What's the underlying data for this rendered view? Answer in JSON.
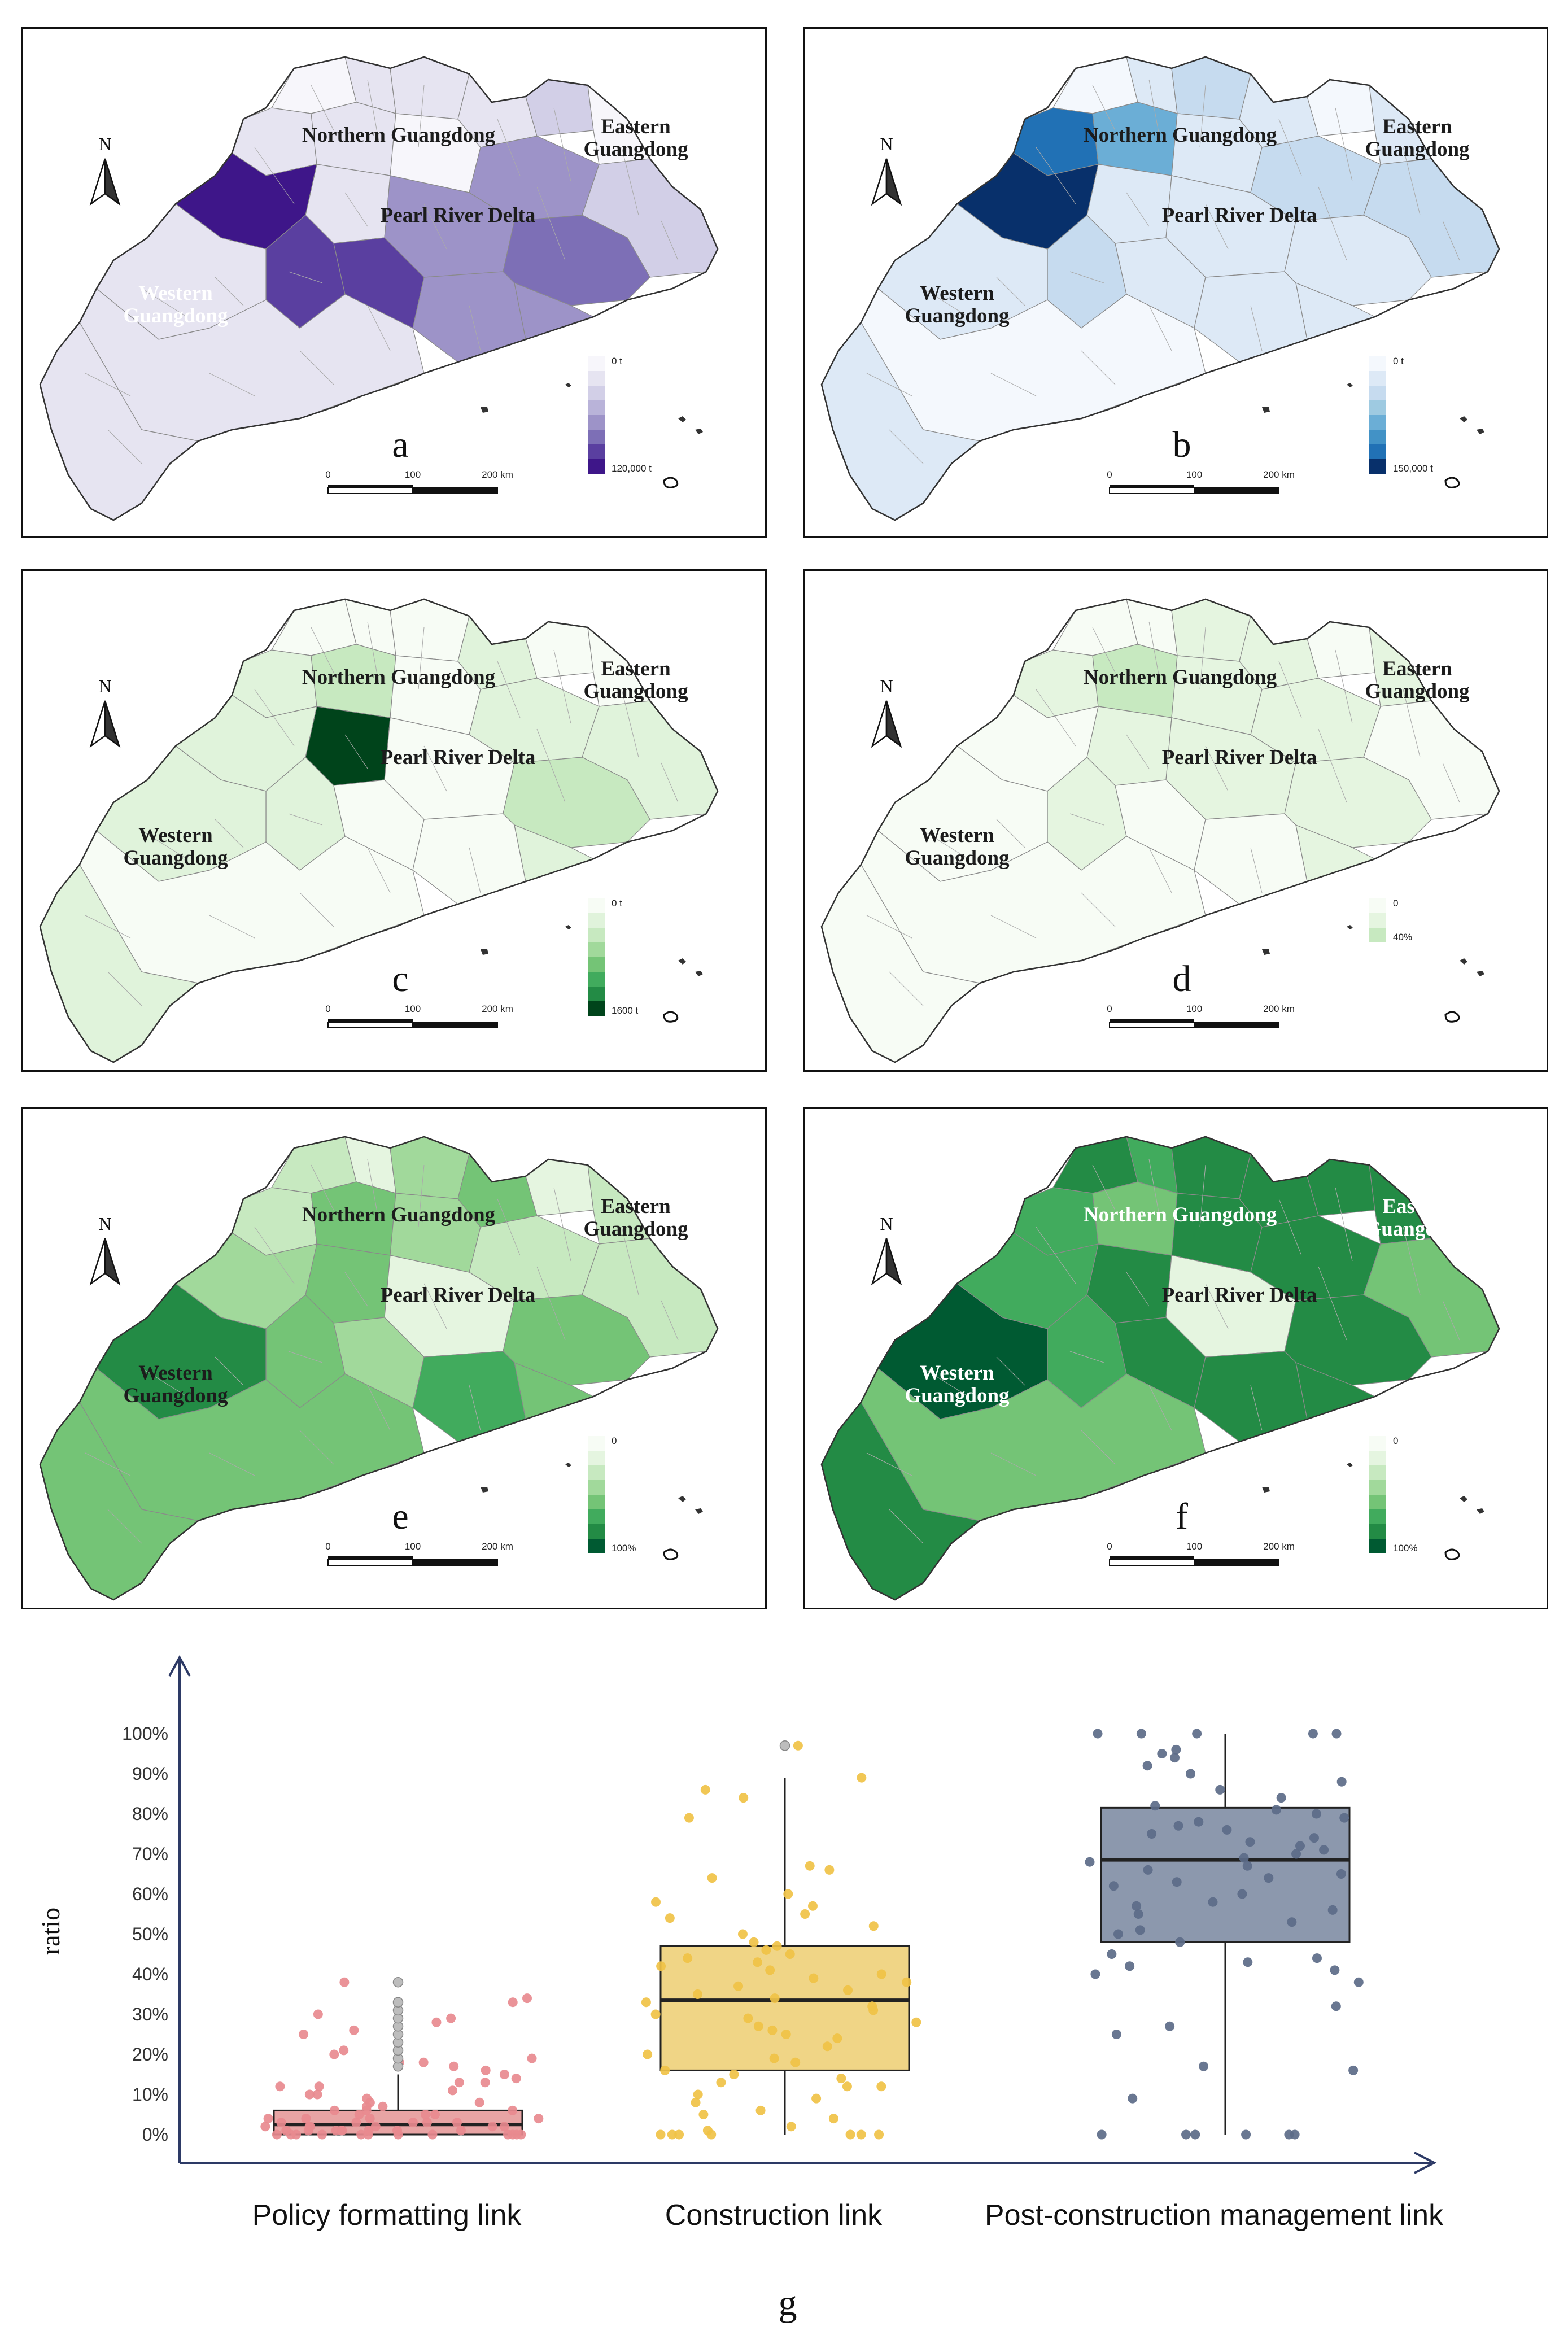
{
  "regions": {
    "north": "Northern Guangdong",
    "east_line1": "Eastern",
    "east_line2": "Guangdong",
    "prd": "Pearl River Delta",
    "west_line1": "Western",
    "west_line2": "Guangdong"
  },
  "north_arrow": "N",
  "scale": {
    "t0": "0",
    "t1": "100",
    "t2": "200 km"
  },
  "panels": [
    {
      "letter": "a",
      "legend_min": "0 t",
      "legend_max": "120,000 t",
      "colors": [
        "#f7f6fb",
        "#e6e4f1",
        "#d2cfe7",
        "#b9b3d9",
        "#9d93c8",
        "#7d6fb6",
        "#5a3fa0",
        "#3e1689"
      ],
      "fills": [
        0.05,
        0.2,
        0.15,
        0.1,
        0.3,
        0.05,
        0.1,
        0.15,
        0.05,
        0.2,
        0.5,
        0.55,
        0.35,
        0.75,
        1.0,
        0.9,
        0.85,
        0.6,
        0.5,
        0.15,
        0.1,
        0.1
      ]
    },
    {
      "letter": "b",
      "legend_min": "0 t",
      "legend_max": "150,000 t",
      "colors": [
        "#f4f8fd",
        "#dde9f6",
        "#c6dbef",
        "#9ecae1",
        "#6baed6",
        "#4292c6",
        "#2171b5",
        "#08306b"
      ],
      "fills": [
        0.05,
        0.15,
        0.35,
        0.1,
        0.05,
        0.1,
        0.8,
        0.5,
        0.1,
        0.1,
        0.3,
        0.15,
        0.25,
        0.15,
        1.0,
        0.3,
        0.1,
        0.15,
        0.1,
        0.1,
        0.05,
        0.1
      ]
    },
    {
      "letter": "c",
      "legend_min": "0 t",
      "legend_max": "1600 t",
      "colors": [
        "#f7fcf5",
        "#e0f3db",
        "#c7e9c0",
        "#a1d99b",
        "#74c476",
        "#41ab5d",
        "#238b45",
        "#00441b"
      ],
      "fills": [
        0.05,
        0.05,
        0.05,
        0.1,
        0.05,
        0.05,
        0.15,
        0.35,
        0.05,
        1.0,
        0.1,
        0.05,
        0.1,
        0.3,
        0.15,
        0.2,
        0.05,
        0.05,
        0.15,
        0.1,
        0.05,
        0.15
      ]
    },
    {
      "letter": "d",
      "legend_min": "0",
      "legend_max": "40%",
      "colors": [
        "#f7fcf5",
        "#e5f5e0",
        "#c7e9c0"
      ],
      "fills": [
        0.2,
        0.2,
        0.3,
        0.3,
        0.2,
        0.3,
        0.6,
        0.8,
        0.3,
        0.4,
        0.5,
        0.3,
        0.2,
        0.4,
        0.2,
        0.3,
        0.2,
        0.2,
        0.3,
        0.2,
        0.2,
        0.2
      ]
    },
    {
      "letter": "e",
      "legend_min": "0",
      "legend_max": "100%",
      "colors": [
        "#f7fcf5",
        "#e5f5e0",
        "#c7e9c0",
        "#a1d99b",
        "#74c476",
        "#41ab5d",
        "#238b45",
        "#005a32"
      ],
      "fills": [
        0.3,
        0.2,
        0.4,
        0.6,
        0.2,
        0.3,
        0.3,
        0.5,
        0.4,
        0.6,
        0.3,
        0.1,
        0.3,
        0.5,
        0.4,
        0.5,
        0.4,
        0.7,
        0.5,
        0.9,
        0.6,
        0.5
      ]
    },
    {
      "letter": "f",
      "legend_min": "0",
      "legend_max": "100%",
      "colors": [
        "#f7fcf5",
        "#e5f5e0",
        "#c7e9c0",
        "#a1d99b",
        "#74c476",
        "#41ab5d",
        "#238b45",
        "#005a32"
      ],
      "fills": [
        0.9,
        0.7,
        0.9,
        0.8,
        0.9,
        0.9,
        0.7,
        0.6,
        0.8,
        0.9,
        0.8,
        0.1,
        0.6,
        0.9,
        0.7,
        0.7,
        0.9,
        0.8,
        0.8,
        1.0,
        0.6,
        0.9
      ]
    }
  ],
  "chart_data": {
    "type": "box",
    "label": "g",
    "ylabel": "ratio",
    "ylim": [
      0,
      100
    ],
    "yticks": [
      "0%",
      "10%",
      "20%",
      "30%",
      "40%",
      "50%",
      "60%",
      "70%",
      "80%",
      "90%",
      "100%"
    ],
    "categories": [
      "Policy formatting link",
      "Construction link",
      "Post-construction management link"
    ],
    "colors": {
      "box": [
        "#e8a4a4",
        "#f0d586",
        "#8c98ad"
      ],
      "points": [
        "#e88a8f",
        "#f0c246",
        "#5c6b88"
      ],
      "outlier": "#bdbdbd"
    },
    "boxes": [
      {
        "q1": 0,
        "median": 2.5,
        "q3": 6,
        "whisker_low": 0,
        "whisker_high": 15
      },
      {
        "q1": 16,
        "median": 33.5,
        "q3": 47,
        "whisker_low": 0,
        "whisker_high": 89
      },
      {
        "q1": 48,
        "median": 68.5,
        "q3": 81.5,
        "whisker_low": 0,
        "whisker_high": 100
      }
    ],
    "outliers": [
      [
        17,
        19,
        21,
        23,
        25,
        27,
        29,
        31,
        33,
        38
      ],
      [
        97
      ],
      []
    ],
    "points": [
      [
        0,
        0,
        0,
        0,
        0,
        0,
        0,
        0,
        0,
        0,
        0,
        0,
        1,
        1,
        1,
        1,
        1,
        1,
        1,
        1,
        2,
        2,
        2,
        2,
        2,
        2,
        3,
        3,
        3,
        3,
        3,
        4,
        4,
        4,
        4,
        5,
        5,
        5,
        6,
        6,
        6,
        7,
        7,
        8,
        8,
        9,
        10,
        10,
        11,
        12,
        12,
        13,
        13,
        14,
        15,
        16,
        17,
        18,
        18,
        19,
        20,
        21,
        25,
        26,
        28,
        29,
        30,
        33,
        34,
        38
      ],
      [
        0,
        0,
        0,
        0,
        0,
        0,
        0,
        1,
        2,
        4,
        5,
        6,
        8,
        9,
        10,
        12,
        12,
        13,
        14,
        15,
        16,
        18,
        19,
        20,
        22,
        24,
        25,
        26,
        27,
        28,
        29,
        30,
        31,
        32,
        33,
        34,
        35,
        36,
        37,
        38,
        39,
        40,
        41,
        42,
        43,
        44,
        45,
        46,
        47,
        48,
        50,
        52,
        54,
        55,
        57,
        58,
        60,
        64,
        66,
        67,
        79,
        84,
        86,
        89,
        97
      ],
      [
        0,
        0,
        0,
        0,
        0,
        0,
        9,
        16,
        17,
        25,
        27,
        32,
        38,
        40,
        41,
        42,
        43,
        44,
        45,
        48,
        50,
        51,
        53,
        55,
        56,
        57,
        58,
        60,
        62,
        63,
        64,
        65,
        66,
        67,
        68,
        69,
        70,
        71,
        72,
        73,
        74,
        75,
        76,
        77,
        78,
        79,
        80,
        81,
        82,
        84,
        86,
        88,
        90,
        92,
        94,
        95,
        96,
        100,
        100,
        100,
        100,
        100
      ]
    ]
  }
}
